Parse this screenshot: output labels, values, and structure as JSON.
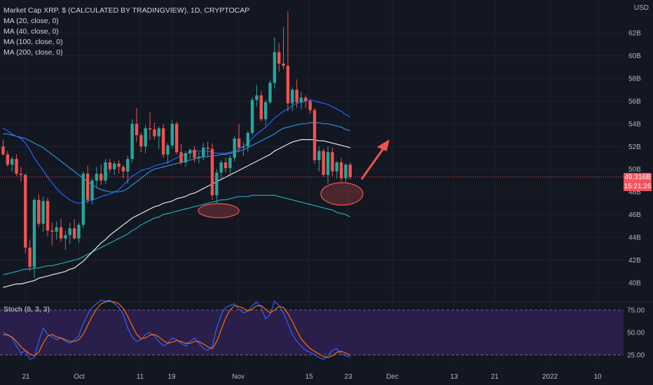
{
  "chart_data": {
    "type": "candlestick",
    "title": "Market Cap XRP, $ (CALCULATED BY TRADINGVIEW), 1D, CRYPTOCAP",
    "currency_label": "USD",
    "indicators": [
      "MA (20, close, 0)",
      "MA (40, close, 0)",
      "MA (100, close, 0)",
      "MA (200, close, 0)"
    ],
    "y_axis": {
      "unit": "B",
      "ticks": [
        "62B",
        "60B",
        "58B",
        "56B",
        "54B",
        "52B",
        "50B",
        "48B",
        "46B",
        "44B",
        "42B",
        "40B"
      ]
    },
    "x_axis": {
      "ticks": [
        "21",
        "Oct",
        "11",
        "19",
        "Nov",
        "15",
        "23",
        "Dec",
        "13",
        "21",
        "2022",
        "10"
      ]
    },
    "last_price": "49.316B",
    "countdown": "15:21:26",
    "candles": [
      [
        52.0,
        52.6,
        51.2,
        51.3
      ],
      [
        51.3,
        51.6,
        50.2,
        50.4
      ],
      [
        50.4,
        51.1,
        49.8,
        50.9
      ],
      [
        50.9,
        51.3,
        49.4,
        49.6
      ],
      [
        49.6,
        50.2,
        48.9,
        49.5
      ],
      [
        49.5,
        49.6,
        42.6,
        43.1
      ],
      [
        43.1,
        43.8,
        41.0,
        41.4
      ],
      [
        41.4,
        47.5,
        40.4,
        47.3
      ],
      [
        47.3,
        47.8,
        44.9,
        45.2
      ],
      [
        45.2,
        47.6,
        44.5,
        47.2
      ],
      [
        47.2,
        47.5,
        44.1,
        44.6
      ],
      [
        44.6,
        45.3,
        43.3,
        44.5
      ],
      [
        44.5,
        45.4,
        43.8,
        44.9
      ],
      [
        44.9,
        45.6,
        43.6,
        43.9
      ],
      [
        43.9,
        44.6,
        42.9,
        44.2
      ],
      [
        44.2,
        45.3,
        43.4,
        44.8
      ],
      [
        44.8,
        45.6,
        43.8,
        43.9
      ],
      [
        43.9,
        45.3,
        43.5,
        45.1
      ],
      [
        45.1,
        49.8,
        44.8,
        49.6
      ],
      [
        49.6,
        50.3,
        47.0,
        47.3
      ],
      [
        47.3,
        49.2,
        46.9,
        49.0
      ],
      [
        49.0,
        50.2,
        48.4,
        49.6
      ],
      [
        49.6,
        50.4,
        48.6,
        49.0
      ],
      [
        49.0,
        50.9,
        48.7,
        50.6
      ],
      [
        50.6,
        50.9,
        49.7,
        50.0
      ],
      [
        50.0,
        50.7,
        49.5,
        50.5
      ],
      [
        50.5,
        50.8,
        49.6,
        50.2
      ],
      [
        50.2,
        50.4,
        49.2,
        49.8
      ],
      [
        49.8,
        51.2,
        48.7,
        50.9
      ],
      [
        50.9,
        54.4,
        50.6,
        54.0
      ],
      [
        54.0,
        55.4,
        52.4,
        53.0
      ],
      [
        53.0,
        53.2,
        51.5,
        52.0
      ],
      [
        52.0,
        53.9,
        51.4,
        53.6
      ],
      [
        53.6,
        55.0,
        52.6,
        53.5
      ],
      [
        53.5,
        54.1,
        52.6,
        52.9
      ],
      [
        52.9,
        53.8,
        51.8,
        53.6
      ],
      [
        53.6,
        54.0,
        51.0,
        51.3
      ],
      [
        51.3,
        52.3,
        50.5,
        52.1
      ],
      [
        52.1,
        54.3,
        51.8,
        54.0
      ],
      [
        54.0,
        54.2,
        51.3,
        51.5
      ],
      [
        51.5,
        52.2,
        50.4,
        50.6
      ],
      [
        50.6,
        51.6,
        50.2,
        51.4
      ],
      [
        51.4,
        51.8,
        50.9,
        51.7
      ],
      [
        51.7,
        52.0,
        50.6,
        51.0
      ],
      [
        51.0,
        51.5,
        50.5,
        51.1
      ],
      [
        51.1,
        52.3,
        50.8,
        51.9
      ],
      [
        51.9,
        52.4,
        51.1,
        51.8
      ],
      [
        51.8,
        52.3,
        47.3,
        47.7
      ],
      [
        47.7,
        50.0,
        47.0,
        49.7
      ],
      [
        49.7,
        50.8,
        49.1,
        50.6
      ],
      [
        50.6,
        51.0,
        49.7,
        50.1
      ],
      [
        50.1,
        51.2,
        49.6,
        51.0
      ],
      [
        51.0,
        52.9,
        50.7,
        52.7
      ],
      [
        52.7,
        54.0,
        51.5,
        51.9
      ],
      [
        51.9,
        52.4,
        51.2,
        52.0
      ],
      [
        52.0,
        53.4,
        51.5,
        53.2
      ],
      [
        53.2,
        56.3,
        53.0,
        56.1
      ],
      [
        56.1,
        57.4,
        55.5,
        56.5
      ],
      [
        56.5,
        56.9,
        54.2,
        54.4
      ],
      [
        54.4,
        56.1,
        53.8,
        55.9
      ],
      [
        55.9,
        57.8,
        55.7,
        57.6
      ],
      [
        57.6,
        61.6,
        57.1,
        60.3
      ],
      [
        60.3,
        61.1,
        58.6,
        59.3
      ],
      [
        59.3,
        62.5,
        58.8,
        59.1
      ],
      [
        59.1,
        63.9,
        55.1,
        55.8
      ],
      [
        55.8,
        57.2,
        55.1,
        57.0
      ],
      [
        57.0,
        57.9,
        55.4,
        55.9
      ],
      [
        55.9,
        56.8,
        55.3,
        56.3
      ],
      [
        56.3,
        56.5,
        55.4,
        56.0
      ],
      [
        56.0,
        56.2,
        54.9,
        55.2
      ],
      [
        55.2,
        55.4,
        50.5,
        50.8
      ],
      [
        50.8,
        52.0,
        49.8,
        51.6
      ],
      [
        51.6,
        51.8,
        49.3,
        49.5
      ],
      [
        49.5,
        52.0,
        48.7,
        51.5
      ],
      [
        51.5,
        51.9,
        49.4,
        49.8
      ],
      [
        49.8,
        50.7,
        49.2,
        50.6
      ],
      [
        50.6,
        51.0,
        48.9,
        49.2
      ],
      [
        49.2,
        50.5,
        48.8,
        50.4
      ],
      [
        50.4,
        50.6,
        49.1,
        49.3
      ]
    ],
    "ma20": [
      53.6,
      53.4,
      53.1,
      52.9,
      52.7,
      52.3,
      51.7,
      51.0,
      50.4,
      49.9,
      49.3,
      48.8,
      48.3,
      47.9,
      47.6,
      47.3,
      47.1,
      47.0,
      47.1,
      47.2,
      47.3,
      47.4,
      47.6,
      47.7,
      47.8,
      48.0,
      48.2,
      48.6,
      49.0,
      49.4,
      49.6,
      49.9,
      50.0,
      50.1,
      50.3,
      50.4,
      50.5,
      50.6,
      50.8,
      51.0,
      51.2,
      51.3,
      51.5,
      51.6,
      51.6,
      51.6,
      51.6,
      51.5,
      51.4,
      51.4,
      51.4,
      51.5,
      51.6,
      51.8,
      52.0,
      52.3,
      52.7,
      53.1,
      53.4,
      53.7,
      54.1,
      54.5,
      54.8,
      55.1,
      55.3,
      55.6,
      55.8,
      55.9,
      56.0,
      56.1,
      56.0,
      55.9,
      55.8,
      55.7,
      55.5,
      55.3,
      55.1,
      54.8,
      54.6
    ],
    "ma40": [
      53.1,
      53.1,
      53.0,
      52.9,
      52.8,
      52.7,
      52.5,
      52.3,
      52.1,
      51.9,
      51.6,
      51.3,
      51.0,
      50.7,
      50.4,
      50.1,
      49.8,
      49.5,
      49.2,
      48.9,
      48.6,
      48.4,
      48.2,
      48.1,
      48.0,
      48.0,
      48.0,
      48.1,
      48.3,
      48.6,
      48.9,
      49.2,
      49.5,
      49.8,
      50.0,
      50.1,
      50.2,
      50.3,
      50.4,
      50.5,
      50.6,
      50.7,
      50.8,
      50.9,
      51.0,
      51.1,
      51.1,
      51.2,
      51.2,
      51.3,
      51.3,
      51.4,
      51.5,
      51.6,
      51.7,
      51.9,
      52.1,
      52.3,
      52.5,
      52.7,
      52.9,
      53.1,
      53.4,
      53.6,
      53.7,
      53.8,
      53.9,
      54.0,
      54.0,
      54.1,
      54.1,
      54.1,
      54.0,
      54.0,
      53.9,
      53.8,
      53.7,
      53.5,
      53.4
    ],
    "ma100": [
      40.7,
      40.8,
      40.9,
      41.0,
      41.1,
      41.2,
      41.2,
      41.3,
      41.3,
      41.4,
      41.5,
      41.5,
      41.6,
      41.7,
      41.8,
      41.9,
      42.0,
      42.1,
      42.3,
      42.5,
      42.7,
      42.9,
      43.1,
      43.3,
      43.5,
      43.7,
      43.9,
      44.1,
      44.3,
      44.6,
      44.8,
      45.1,
      45.3,
      45.5,
      45.7,
      45.8,
      46.0,
      46.1,
      46.2,
      46.3,
      46.4,
      46.5,
      46.6,
      46.7,
      46.8,
      46.9,
      47.0,
      47.1,
      47.2,
      47.3,
      47.3,
      47.4,
      47.5,
      47.6,
      47.6,
      47.6,
      47.7,
      47.7,
      47.7,
      47.7,
      47.7,
      47.7,
      47.6,
      47.5,
      47.4,
      47.3,
      47.2,
      47.1,
      47.0,
      46.9,
      46.8,
      46.7,
      46.6,
      46.5,
      46.4,
      46.2,
      46.1,
      46.0,
      45.8
    ],
    "ma200": [
      39.6,
      39.7,
      39.8,
      39.9,
      39.9,
      40.0,
      40.1,
      40.2,
      40.4,
      40.5,
      40.6,
      40.7,
      40.8,
      40.9,
      41.0,
      41.2,
      41.3,
      41.6,
      41.9,
      42.3,
      42.7,
      43.1,
      43.5,
      43.8,
      44.2,
      44.5,
      44.8,
      45.1,
      45.4,
      45.7,
      45.9,
      46.1,
      46.3,
      46.5,
      46.7,
      46.8,
      47.0,
      47.1,
      47.2,
      47.4,
      47.5,
      47.6,
      47.8,
      47.9,
      48.1,
      48.3,
      48.5,
      48.7,
      48.9,
      49.1,
      49.3,
      49.5,
      49.7,
      49.9,
      50.1,
      50.3,
      50.5,
      50.7,
      50.9,
      51.1,
      51.3,
      51.6,
      51.8,
      52.0,
      52.2,
      52.4,
      52.5,
      52.6,
      52.6,
      52.6,
      52.6,
      52.5,
      52.5,
      52.4,
      52.3,
      52.2,
      52.1,
      52.0,
      51.9
    ],
    "stoch": {
      "label": "Stoch (8, 3, 3)",
      "ticks": [
        "75.00",
        "50.00",
        "25.00"
      ],
      "k": [
        50,
        48,
        44,
        35,
        27,
        30,
        20,
        22,
        40,
        55,
        48,
        45,
        42,
        44,
        40,
        38,
        42,
        46,
        60,
        70,
        78,
        82,
        86,
        85,
        86,
        82,
        78,
        70,
        55,
        45,
        40,
        42,
        48,
        50,
        46,
        40,
        35,
        38,
        44,
        42,
        38,
        35,
        40,
        44,
        38,
        32,
        30,
        35,
        55,
        70,
        78,
        80,
        82,
        76,
        72,
        74,
        80,
        84,
        78,
        65,
        70,
        85,
        80,
        72,
        60,
        48,
        40,
        35,
        30,
        28,
        25,
        22,
        20,
        24,
        30,
        32,
        26,
        24,
        23
      ],
      "d": [
        48,
        47,
        45,
        40,
        34,
        30,
        26,
        24,
        28,
        38,
        46,
        48,
        45,
        44,
        42,
        40,
        40,
        42,
        48,
        58,
        68,
        76,
        82,
        84,
        85,
        84,
        82,
        77,
        68,
        58,
        48,
        43,
        44,
        47,
        48,
        45,
        41,
        38,
        39,
        41,
        40,
        38,
        38,
        40,
        40,
        37,
        34,
        32,
        40,
        53,
        66,
        75,
        80,
        79,
        77,
        74,
        76,
        80,
        80,
        76,
        72,
        75,
        79,
        78,
        71,
        62,
        52,
        43,
        37,
        32,
        29,
        26,
        23,
        22,
        24,
        28,
        29,
        27,
        25
      ]
    },
    "annotations": [
      "ellipse",
      "ellipse",
      "arrow-up-right"
    ]
  }
}
